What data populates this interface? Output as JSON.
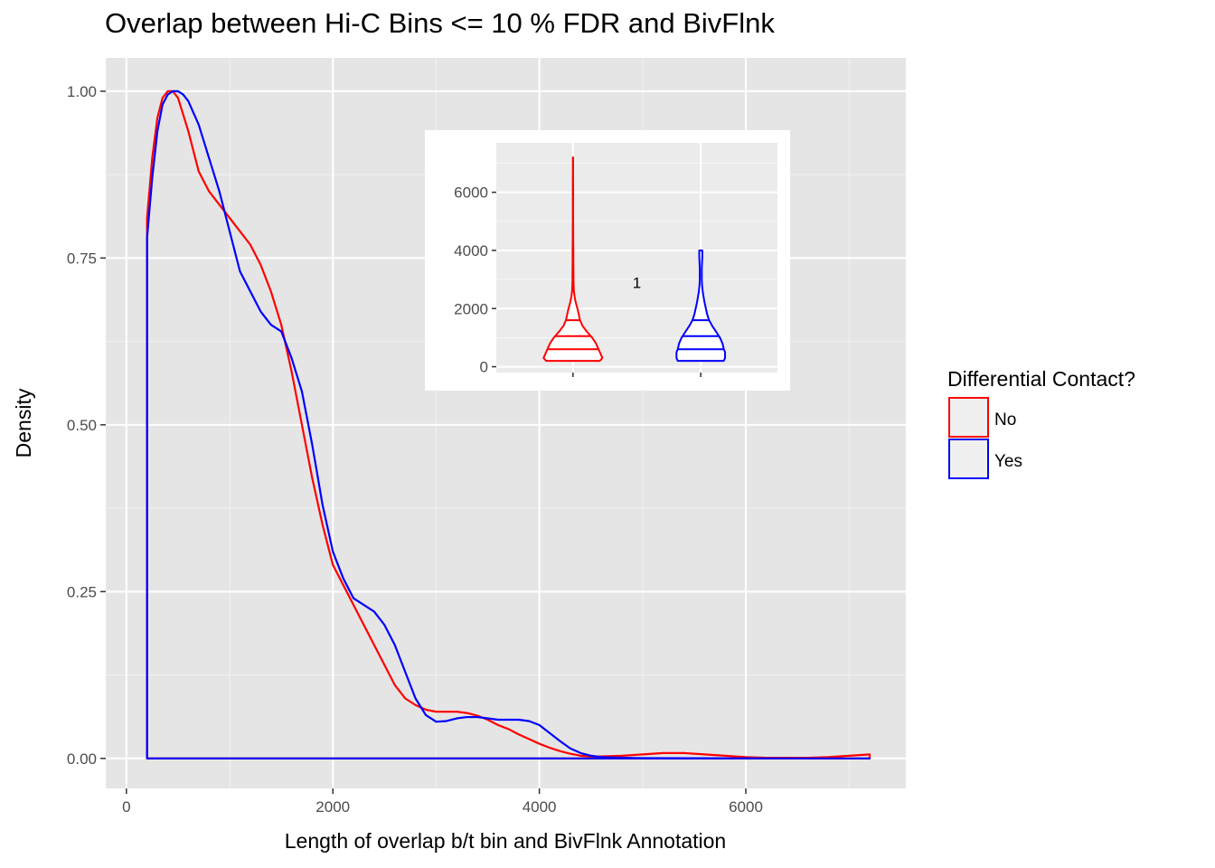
{
  "title": "Overlap between Hi-C Bins <= 10 % FDR and BivFlnk",
  "chart_data": {
    "type": "density",
    "xlabel": "Length of overlap b/t bin and BivFlnk Annotation",
    "ylabel": "Density",
    "xlim": [
      -200,
      7550
    ],
    "ylim": [
      -0.045,
      1.05
    ],
    "x_ticks": [
      0,
      2000,
      4000,
      6000
    ],
    "y_ticks": [
      0.0,
      0.25,
      0.5,
      0.75,
      1.0
    ],
    "y_tick_labels": [
      "0.00",
      "0.25",
      "0.50",
      "0.75",
      "1.00"
    ],
    "background": "#e5e5e5",
    "grid": true,
    "legend": {
      "title": "Differential Contact?",
      "position": "right",
      "entries": [
        {
          "label": "No",
          "color": "#ff0000"
        },
        {
          "label": "Yes",
          "color": "#0000ff"
        }
      ]
    },
    "series": [
      {
        "name": "No",
        "color": "#ff0000",
        "x": [
          200,
          250,
          300,
          350,
          400,
          450,
          500,
          600,
          700,
          800,
          900,
          1000,
          1100,
          1200,
          1300,
          1400,
          1500,
          1600,
          1700,
          1800,
          1900,
          2000,
          2100,
          2200,
          2300,
          2400,
          2500,
          2600,
          2700,
          2800,
          2900,
          3000,
          3100,
          3200,
          3300,
          3400,
          3500,
          3600,
          3700,
          3800,
          3900,
          4000,
          4100,
          4200,
          4300,
          4400,
          4500,
          4600,
          4800,
          5000,
          5200,
          5400,
          5600,
          5800,
          6000,
          6200,
          6400,
          6600,
          6800,
          7000,
          7100,
          7200
        ],
        "y": [
          0.81,
          0.9,
          0.96,
          0.99,
          1.0,
          1.0,
          0.99,
          0.94,
          0.88,
          0.85,
          0.83,
          0.81,
          0.79,
          0.77,
          0.74,
          0.7,
          0.65,
          0.58,
          0.5,
          0.42,
          0.35,
          0.29,
          0.26,
          0.23,
          0.2,
          0.17,
          0.14,
          0.11,
          0.09,
          0.08,
          0.073,
          0.07,
          0.07,
          0.07,
          0.068,
          0.064,
          0.058,
          0.05,
          0.044,
          0.036,
          0.029,
          0.022,
          0.016,
          0.011,
          0.007,
          0.004,
          0.003,
          0.003,
          0.004,
          0.006,
          0.008,
          0.008,
          0.006,
          0.004,
          0.002,
          0.001,
          0.001,
          0.001,
          0.002,
          0.004,
          0.005,
          0.006
        ]
      },
      {
        "name": "Yes",
        "color": "#0000ff",
        "x": [
          200,
          250,
          300,
          350,
          400,
          450,
          500,
          550,
          600,
          700,
          800,
          900,
          1000,
          1100,
          1200,
          1300,
          1400,
          1500,
          1600,
          1700,
          1800,
          1900,
          2000,
          2100,
          2200,
          2300,
          2400,
          2500,
          2600,
          2700,
          2800,
          2900,
          3000,
          3100,
          3200,
          3300,
          3400,
          3500,
          3600,
          3700,
          3800,
          3900,
          4000,
          4100,
          4200,
          4300,
          4400,
          4500,
          4600,
          4800,
          5000,
          5500,
          6000,
          6500,
          7000,
          7200
        ],
        "y": [
          0.78,
          0.87,
          0.94,
          0.98,
          0.995,
          1.0,
          1.0,
          0.995,
          0.985,
          0.95,
          0.9,
          0.85,
          0.79,
          0.73,
          0.7,
          0.67,
          0.65,
          0.64,
          0.6,
          0.55,
          0.47,
          0.38,
          0.31,
          0.27,
          0.24,
          0.23,
          0.22,
          0.2,
          0.17,
          0.13,
          0.09,
          0.065,
          0.055,
          0.056,
          0.06,
          0.062,
          0.062,
          0.06,
          0.058,
          0.058,
          0.058,
          0.056,
          0.05,
          0.038,
          0.026,
          0.015,
          0.008,
          0.004,
          0.002,
          0.001,
          0.0005,
          0.0002,
          0.0001,
          0.0,
          0.0,
          0.0
        ]
      }
    ],
    "inset": {
      "type": "violin",
      "category": "1",
      "ylim": [
        -200,
        7700
      ],
      "y_ticks": [
        0,
        2000,
        4000,
        6000
      ],
      "background": "#ebebeb",
      "grid": true,
      "violins": [
        {
          "name": "No",
          "color": "#ff0000",
          "position": 1,
          "quantiles": [
            600,
            1050,
            1600
          ],
          "y": [
            200,
            300,
            400,
            500,
            600,
            800,
            1000,
            1200,
            1400,
            1600,
            1800,
            2000,
            2200,
            2400,
            2600,
            2800,
            3000,
            3200,
            3400,
            3600,
            3800,
            4000,
            4200,
            4400,
            4600,
            5000,
            5400,
            5800,
            6200,
            6600,
            7000,
            7200
          ],
          "hw": [
            0.21,
            0.23,
            0.22,
            0.21,
            0.2,
            0.18,
            0.15,
            0.11,
            0.075,
            0.055,
            0.045,
            0.035,
            0.022,
            0.013,
            0.007,
            0.005,
            0.004,
            0.004,
            0.0035,
            0.003,
            0.003,
            0.003,
            0.0025,
            0.002,
            0.002,
            0.0015,
            0.0015,
            0.0015,
            0.0015,
            0.0012,
            0.001,
            0.001
          ]
        },
        {
          "name": "Yes",
          "color": "#0000ff",
          "position": 2,
          "quantiles": [
            600,
            1050,
            1600
          ],
          "y": [
            200,
            300,
            400,
            500,
            600,
            800,
            1000,
            1200,
            1400,
            1600,
            1800,
            2000,
            2200,
            2400,
            2600,
            2800,
            3000,
            3200,
            3400,
            3600,
            3800,
            4000
          ],
          "hw": [
            0.18,
            0.19,
            0.19,
            0.19,
            0.18,
            0.17,
            0.15,
            0.12,
            0.09,
            0.065,
            0.05,
            0.04,
            0.03,
            0.022,
            0.015,
            0.01,
            0.008,
            0.008,
            0.008,
            0.01,
            0.012,
            0.012
          ]
        }
      ]
    }
  }
}
